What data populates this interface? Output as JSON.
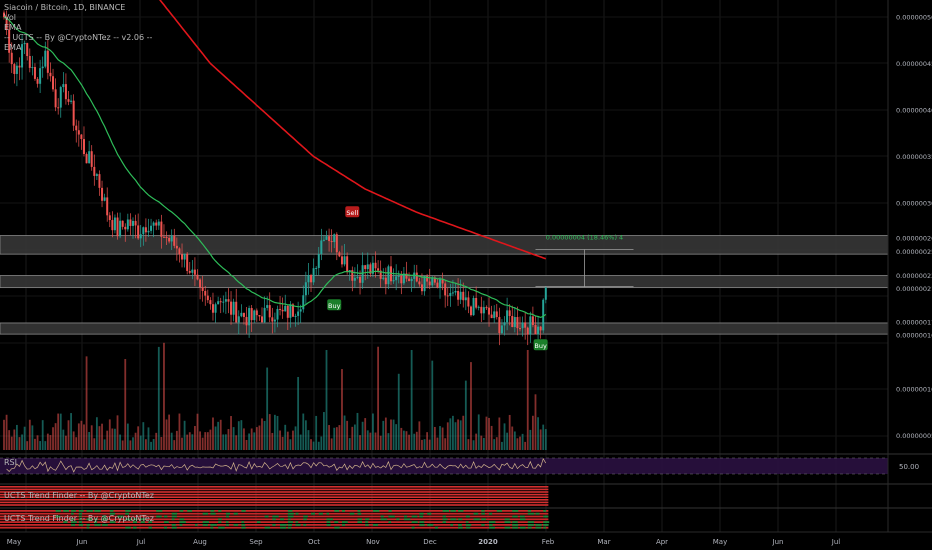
{
  "legend": {
    "symbol_line": "Siacoin / Bitcoin, 1D, BINANCE",
    "volume": "Vol",
    "ema1": "EMA",
    "indicator": "-- UCTS -- By @CryptoNTez -- v2.06 --",
    "ema2": "EMA"
  },
  "panes": {
    "rsi_label": "RSI",
    "rsi_value": "50.00",
    "trend1_label": "UCTS Trend Finder -- By @CryptoNTez",
    "trend2_label": "UCTS Trend Finder -- By @CryptoNTez"
  },
  "measure_label": "0.00000004 (18.46%) 4",
  "colors": {
    "up": "#26a69a",
    "down": "#ef5350",
    "ema_fast": "#2ebd59",
    "ema_slow": "#e0161b",
    "background": "#000000"
  },
  "chart_data": {
    "type": "candlestick",
    "y_ticks": [
      "0.00000050",
      "0.00000045",
      "0.00000040",
      "0.00000035",
      "0.00000030",
      "0.00000026",
      "0.00000025",
      "0.00000022",
      "0.00000021",
      "0.00000017",
      "0.00000016",
      "0.00000010",
      "0.00000005"
    ],
    "y_tick_values": [
      50,
      45,
      40,
      35,
      30,
      26,
      25,
      22,
      21,
      17,
      16,
      10,
      5
    ],
    "x_ticks": [
      "May",
      "Jun",
      "Jul",
      "Aug",
      "Sep",
      "Oct",
      "Nov",
      "Dec",
      "2020",
      "Feb",
      "Mar",
      "Apr",
      "May",
      "Jun",
      "Jul"
    ],
    "zones": [
      [
        24.5,
        26.5
      ],
      [
        20.9,
        22.2
      ],
      [
        15.9,
        17.1
      ]
    ],
    "price_anchors": [
      [
        0,
        50
      ],
      [
        4,
        44
      ],
      [
        8,
        47
      ],
      [
        12,
        43
      ],
      [
        16,
        46
      ],
      [
        20,
        41
      ],
      [
        24,
        42
      ],
      [
        28,
        38
      ],
      [
        32,
        35
      ],
      [
        36,
        33
      ],
      [
        40,
        29
      ],
      [
        44,
        27
      ],
      [
        48,
        28
      ],
      [
        52,
        27
      ],
      [
        56,
        28
      ],
      [
        60,
        27
      ],
      [
        64,
        26
      ],
      [
        68,
        25
      ],
      [
        72,
        23
      ],
      [
        76,
        20
      ],
      [
        80,
        19
      ],
      [
        84,
        20
      ],
      [
        88,
        18.5
      ],
      [
        92,
        18
      ],
      [
        96,
        17.5
      ],
      [
        100,
        18
      ],
      [
        104,
        18.3
      ],
      [
        108,
        18
      ],
      [
        112,
        18.5
      ],
      [
        116,
        20
      ],
      [
        120,
        23
      ],
      [
        124,
        27
      ],
      [
        128,
        26
      ],
      [
        132,
        24
      ],
      [
        136,
        22
      ],
      [
        140,
        23
      ],
      [
        144,
        22.5
      ],
      [
        148,
        22.2
      ],
      [
        152,
        22.8
      ],
      [
        156,
        22
      ],
      [
        160,
        21.5
      ],
      [
        164,
        21.2
      ],
      [
        168,
        21
      ],
      [
        172,
        20
      ],
      [
        176,
        19.5
      ],
      [
        180,
        19
      ],
      [
        184,
        18.5
      ],
      [
        188,
        18
      ],
      [
        192,
        17
      ],
      [
        196,
        17.5
      ],
      [
        200,
        17.2
      ],
      [
        204,
        16.8
      ],
      [
        208,
        17
      ],
      [
        210,
        21.5
      ]
    ],
    "ema_slow_anchors": [
      [
        0,
        82
      ],
      [
        20,
        70
      ],
      [
        40,
        60
      ],
      [
        60,
        52
      ],
      [
        80,
        45
      ],
      [
        100,
        40
      ],
      [
        120,
        35
      ],
      [
        140,
        31.5
      ],
      [
        160,
        29
      ],
      [
        180,
        27
      ],
      [
        200,
        25
      ],
      [
        210,
        24
      ]
    ],
    "signals": [
      {
        "label": "Buy",
        "type": "buy",
        "bar": 128,
        "price": 19.0
      },
      {
        "label": "Sell",
        "type": "sell",
        "bar": 135,
        "price": 29.0
      },
      {
        "label": "Buy",
        "type": "buy",
        "bar": 208,
        "price": 14.7
      }
    ],
    "bars": 211
  }
}
